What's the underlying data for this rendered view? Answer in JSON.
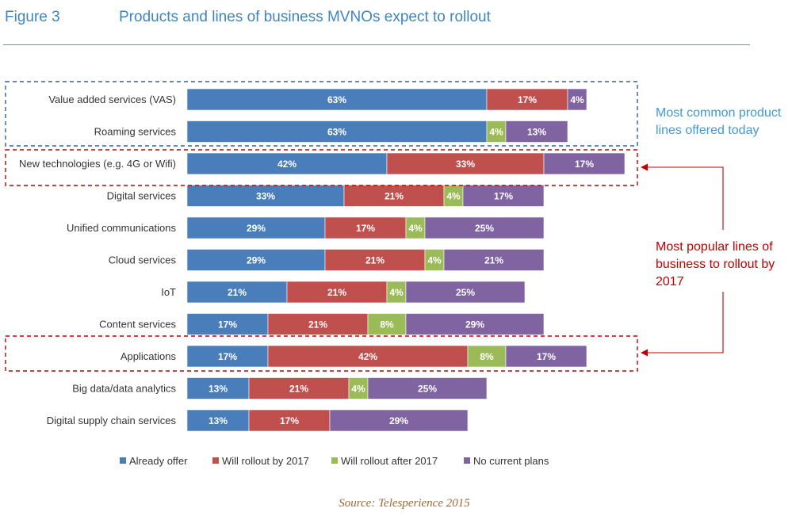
{
  "figure_label": "Figure 3",
  "title": "Products and lines of business MVNOs expect to rollout",
  "source": "Source: Telesperience 2015",
  "annotations": {
    "common_today": [
      "Most common product",
      "lines offered today"
    ],
    "popular_rollout": [
      "Most popular lines of",
      "business to rollout by",
      "2017"
    ]
  },
  "colors": {
    "already_offer": "#4a7ebb",
    "rollout_2017": "#c0504d",
    "rollout_after": "#9bbb59",
    "no_plans": "#8064a2",
    "annotation_blue": "#3e9ad6",
    "annotation_red": "#c00000",
    "box_blue": "#2e5f9e",
    "box_red": "#c00000"
  },
  "chart_data": {
    "type": "bar",
    "orientation": "horizontal",
    "stacked": true,
    "value_format": "percent",
    "xlim": [
      0,
      100
    ],
    "grid": false,
    "legend_position": "bottom",
    "categories": [
      "Value added services (VAS)",
      "Roaming services",
      "New technologies (e.g. 4G or Wifi)",
      "Digital services",
      "Unified communications",
      "Cloud services",
      "IoT",
      "Content services",
      "Applications",
      "Big data/data analytics",
      "Digital supply chain services"
    ],
    "series": [
      {
        "name": "Already offer",
        "values": [
          63,
          63,
          42,
          33,
          29,
          29,
          21,
          17,
          17,
          13,
          13
        ]
      },
      {
        "name": "Will rollout by 2017",
        "values": [
          17,
          0,
          33,
          21,
          17,
          21,
          21,
          21,
          42,
          21,
          17
        ]
      },
      {
        "name": "Will rollout after 2017",
        "values": [
          0,
          4,
          0,
          4,
          4,
          4,
          4,
          8,
          8,
          4,
          0
        ]
      },
      {
        "name": "No current plans",
        "values": [
          4,
          13,
          17,
          17,
          25,
          21,
          25,
          29,
          17,
          25,
          29
        ]
      }
    ]
  }
}
